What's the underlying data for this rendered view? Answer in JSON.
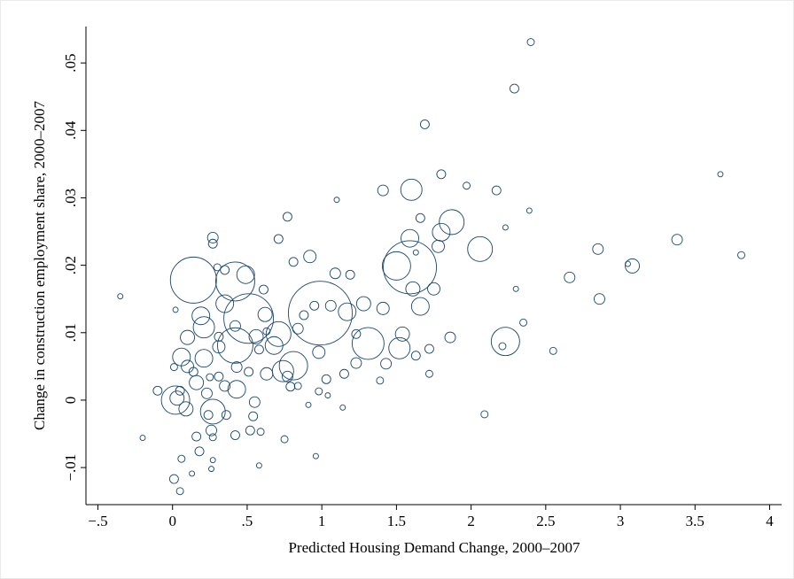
{
  "chart_data": {
    "type": "scatter",
    "xlabel": "Predicted Housing Demand Change, 2000–2007",
    "ylabel": "Change in construction employment share, 2000–2007",
    "color": "#1a476f",
    "xlim": [
      -0.58,
      4.08
    ],
    "ylim": [
      -0.0155,
      0.0554
    ],
    "xticks": [
      {
        "value": -0.5,
        "label": "−.5"
      },
      0,
      {
        "value": 0.5,
        "label": ".5"
      },
      1,
      1.5,
      2,
      2.5,
      3,
      3.5,
      4
    ],
    "yticks": [
      {
        "value": -0.01,
        "label": "−.01"
      },
      0,
      {
        "value": 0.01,
        "label": ".01"
      },
      {
        "value": 0.02,
        "label": ".02"
      },
      {
        "value": 0.03,
        "label": ".03"
      },
      {
        "value": 0.04,
        "label": ".04"
      },
      {
        "value": 0.05,
        "label": ".05"
      }
    ],
    "x": [
      -0.35,
      2.4,
      2.29,
      1.69,
      3.67,
      1.8,
      1.41,
      1.6,
      1.97,
      2.17,
      1.1,
      2.39,
      1.66,
      0.77,
      1.87,
      1.8,
      2.23,
      1.59,
      2.06,
      1.78,
      3.38,
      2.85,
      3.81,
      0.71,
      0.27,
      1.63,
      0.27,
      0.92,
      0.81,
      1.59,
      1.5,
      3.08,
      3.05,
      0.49,
      0.35,
      0.14,
      0.42,
      2.66,
      1.09,
      1.19,
      1.61,
      1.75,
      2.3,
      0.61,
      0.35,
      0.99,
      1.66,
      1.28,
      1.17,
      1.41,
      1.06,
      2.86,
      0.51,
      0.19,
      0.21,
      0.62,
      0.71,
      0.68,
      0.84,
      0.88,
      0.1,
      0.31,
      0.31,
      0.42,
      0.42,
      2.23,
      2.35,
      1.86,
      1.54,
      1.52,
      1.23,
      1.31,
      1.72,
      1.63,
      2.55,
      2.21,
      0.21,
      0.06,
      0.01,
      0.1,
      0.81,
      0.74,
      0.63,
      1.23,
      1.43,
      1.72,
      1.39,
      0.43,
      0.51,
      0.43,
      0.31,
      0.25,
      0.16,
      0.02,
      0.03,
      0.27,
      0.09,
      -0.1,
      0.05,
      0.24,
      0.36,
      0.54,
      0.26,
      0.52,
      0.16,
      -0.2,
      0.27,
      0.42,
      0.59,
      0.18,
      0.06,
      0.96,
      0.01,
      0.05,
      2.09,
      1.14,
      0.91,
      0.75,
      0.58,
      0.27,
      0.26,
      0.13,
      1.03,
      0.98,
      1.15,
      0.77,
      0.84,
      0.79,
      0.98,
      1.04,
      0.35,
      0.23,
      0.14,
      0.55,
      0.58,
      0.63,
      0.56,
      0.02,
      0.3,
      0.95
    ],
    "values": [
      0.0154,
      0.0531,
      0.0462,
      0.0409,
      0.0335,
      0.0335,
      0.0311,
      0.0312,
      0.0318,
      0.0311,
      0.0297,
      0.0281,
      0.027,
      0.0272,
      0.0264,
      0.0249,
      0.0256,
      0.024,
      0.0224,
      0.0228,
      0.0238,
      0.0224,
      0.0215,
      0.0239,
      0.0241,
      0.0219,
      0.0232,
      0.0213,
      0.0205,
      0.0197,
      0.0199,
      0.0199,
      0.0202,
      0.0186,
      0.0193,
      0.0178,
      0.0176,
      0.0182,
      0.0188,
      0.0186,
      0.0165,
      0.0165,
      0.0165,
      0.0164,
      0.0143,
      0.0129,
      0.0139,
      0.0143,
      0.0131,
      0.0136,
      0.014,
      0.015,
      0.0121,
      0.0125,
      0.0108,
      0.0127,
      0.0098,
      0.0081,
      0.0106,
      0.0126,
      0.0093,
      0.0079,
      0.0094,
      0.0081,
      0.011,
      0.0087,
      0.0115,
      0.0093,
      0.0098,
      0.0077,
      0.0098,
      0.0084,
      0.0076,
      0.0066,
      0.0073,
      0.008,
      0.0062,
      0.0064,
      0.0049,
      0.005,
      0.0051,
      0.0043,
      0.0039,
      0.0055,
      0.0054,
      0.0039,
      0.0029,
      0.0049,
      0.0042,
      0.0016,
      0.0035,
      0.0034,
      0.0026,
      0,
      0.0003,
      -0.0017,
      -0.0013,
      0.0014,
      0.0014,
      -0.0022,
      -0.0022,
      -0.0024,
      -0.0045,
      -0.0045,
      -0.0054,
      -0.0056,
      -0.0055,
      -0.0052,
      -0.0047,
      -0.0076,
      -0.0087,
      -0.0083,
      -0.0117,
      -0.0135,
      -0.0021,
      -0.0011,
      -0.0007,
      -0.0058,
      -0.0097,
      -0.0089,
      -0.0102,
      -0.0109,
      0.0031,
      0.0071,
      0.0039,
      0.0035,
      0.0021,
      0.002,
      0.0013,
      0.0007,
      0.0021,
      0.001,
      0.0042,
      -0.0003,
      0.0075,
      0.0102,
      0.0094,
      0.0134,
      0.0197,
      0.014
    ],
    "sizes": [
      9,
      16,
      25,
      25,
      9,
      25,
      36,
      144,
      16,
      25,
      9,
      9,
      25,
      25,
      196,
      100,
      9,
      100,
      196,
      49,
      36,
      36,
      16,
      25,
      36,
      9,
      25,
      49,
      25,
      900,
      256,
      64,
      9,
      100,
      25,
      676,
      484,
      36,
      36,
      25,
      64,
      49,
      9,
      25,
      100,
      1296,
      100,
      64,
      100,
      49,
      36,
      36,
      784,
      100,
      144,
      64,
      196,
      100,
      36,
      25,
      64,
      49,
      25,
      400,
      36,
      256,
      16,
      36,
      64,
      144,
      25,
      324,
      25,
      25,
      16,
      16,
      100,
      100,
      16,
      49,
      256,
      144,
      49,
      36,
      36,
      16,
      16,
      36,
      25,
      100,
      25,
      16,
      64,
      256,
      64,
      196,
      64,
      25,
      25,
      25,
      25,
      25,
      36,
      25,
      25,
      9,
      16,
      25,
      16,
      25,
      16,
      9,
      25,
      16,
      16,
      9,
      9,
      16,
      9,
      9,
      9,
      9,
      25,
      49,
      25,
      36,
      16,
      25,
      16,
      9,
      36,
      36,
      25,
      36,
      25,
      16,
      64,
      9,
      16,
      25
    ]
  }
}
